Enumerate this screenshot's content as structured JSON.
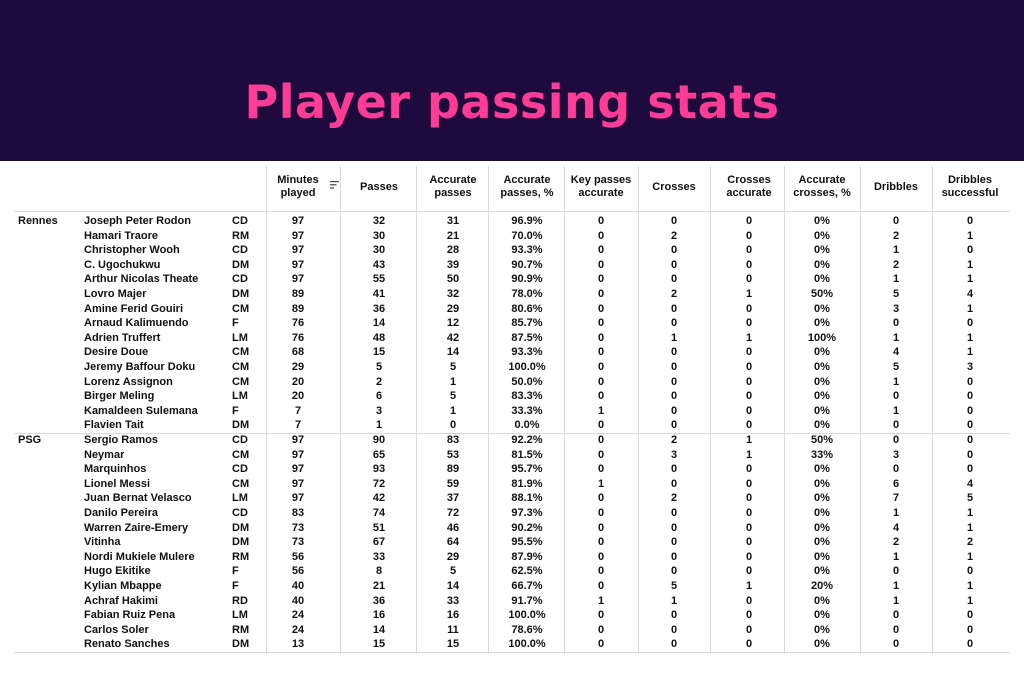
{
  "title": "Player passing stats",
  "colors": {
    "banner": "#1e0a3c",
    "title": "#ff3c96"
  },
  "header": {
    "minutes": [
      "Minutes",
      "played"
    ],
    "passes": [
      "Passes"
    ],
    "acc_passes": [
      "Accurate",
      "passes"
    ],
    "acc_pct": [
      "Accurate",
      "passes, %"
    ],
    "key": [
      "Key passes",
      "accurate"
    ],
    "crosses": [
      "Crosses"
    ],
    "cross_acc": [
      "Crosses",
      "accurate"
    ],
    "cross_pct": [
      "Accurate",
      "crosses, %"
    ],
    "dribbles": [
      "Dribbles"
    ],
    "drib_succ": [
      "Dribbles",
      "successful"
    ],
    "sort_icon": "sort-descending-icon"
  },
  "rows": [
    [
      "Rennes",
      "Joseph Peter Rodon",
      "CD",
      "97",
      "32",
      "31",
      "96.9%",
      "0",
      "0",
      "0",
      "0%",
      "0",
      "0"
    ],
    [
      "",
      "Hamari Traore",
      "RM",
      "97",
      "30",
      "21",
      "70.0%",
      "0",
      "2",
      "0",
      "0%",
      "2",
      "1"
    ],
    [
      "",
      "Christopher Wooh",
      "CD",
      "97",
      "30",
      "28",
      "93.3%",
      "0",
      "0",
      "0",
      "0%",
      "1",
      "0"
    ],
    [
      "",
      "C. Ugochukwu",
      "DM",
      "97",
      "43",
      "39",
      "90.7%",
      "0",
      "0",
      "0",
      "0%",
      "2",
      "1"
    ],
    [
      "",
      "Arthur Nicolas Theate",
      "CD",
      "97",
      "55",
      "50",
      "90.9%",
      "0",
      "0",
      "0",
      "0%",
      "1",
      "1"
    ],
    [
      "",
      "Lovro Majer",
      "DM",
      "89",
      "41",
      "32",
      "78.0%",
      "0",
      "2",
      "1",
      "50%",
      "5",
      "4"
    ],
    [
      "",
      "Amine Ferid Gouiri",
      "CM",
      "89",
      "36",
      "29",
      "80.6%",
      "0",
      "0",
      "0",
      "0%",
      "3",
      "1"
    ],
    [
      "",
      "Arnaud Kalimuendo",
      "F",
      "76",
      "14",
      "12",
      "85.7%",
      "0",
      "0",
      "0",
      "0%",
      "0",
      "0"
    ],
    [
      "",
      "Adrien Truffert",
      "LM",
      "76",
      "48",
      "42",
      "87.5%",
      "0",
      "1",
      "1",
      "100%",
      "1",
      "1"
    ],
    [
      "",
      "Desire Doue",
      "CM",
      "68",
      "15",
      "14",
      "93.3%",
      "0",
      "0",
      "0",
      "0%",
      "4",
      "1"
    ],
    [
      "",
      "Jeremy Baffour Doku",
      "CM",
      "29",
      "5",
      "5",
      "100.0%",
      "0",
      "0",
      "0",
      "0%",
      "5",
      "3"
    ],
    [
      "",
      "Lorenz Assignon",
      "CM",
      "20",
      "2",
      "1",
      "50.0%",
      "0",
      "0",
      "0",
      "0%",
      "1",
      "0"
    ],
    [
      "",
      "Birger Meling",
      "LM",
      "20",
      "6",
      "5",
      "83.3%",
      "0",
      "0",
      "0",
      "0%",
      "0",
      "0"
    ],
    [
      "",
      "Kamaldeen Sulemana",
      "F",
      "7",
      "3",
      "1",
      "33.3%",
      "1",
      "0",
      "0",
      "0%",
      "1",
      "0"
    ],
    [
      "",
      "Flavien Tait",
      "DM",
      "7",
      "1",
      "0",
      "0.0%",
      "0",
      "0",
      "0",
      "0%",
      "0",
      "0"
    ],
    [
      "PSG",
      "Sergio Ramos",
      "CD",
      "97",
      "90",
      "83",
      "92.2%",
      "0",
      "2",
      "1",
      "50%",
      "0",
      "0"
    ],
    [
      "",
      "Neymar",
      "CM",
      "97",
      "65",
      "53",
      "81.5%",
      "0",
      "3",
      "1",
      "33%",
      "3",
      "0"
    ],
    [
      "",
      "Marquinhos",
      "CD",
      "97",
      "93",
      "89",
      "95.7%",
      "0",
      "0",
      "0",
      "0%",
      "0",
      "0"
    ],
    [
      "",
      "Lionel Messi",
      "CM",
      "97",
      "72",
      "59",
      "81.9%",
      "1",
      "0",
      "0",
      "0%",
      "6",
      "4"
    ],
    [
      "",
      "Juan Bernat Velasco",
      "LM",
      "97",
      "42",
      "37",
      "88.1%",
      "0",
      "2",
      "0",
      "0%",
      "7",
      "5"
    ],
    [
      "",
      "Danilo Pereira",
      "CD",
      "83",
      "74",
      "72",
      "97.3%",
      "0",
      "0",
      "0",
      "0%",
      "1",
      "1"
    ],
    [
      "",
      "Warren Zaire-Emery",
      "DM",
      "73",
      "51",
      "46",
      "90.2%",
      "0",
      "0",
      "0",
      "0%",
      "4",
      "1"
    ],
    [
      "",
      "Vitinha",
      "DM",
      "73",
      "67",
      "64",
      "95.5%",
      "0",
      "0",
      "0",
      "0%",
      "2",
      "2"
    ],
    [
      "",
      "Nordi Mukiele Mulere",
      "RM",
      "56",
      "33",
      "29",
      "87.9%",
      "0",
      "0",
      "0",
      "0%",
      "1",
      "1"
    ],
    [
      "",
      "Hugo Ekitike",
      "F",
      "56",
      "8",
      "5",
      "62.5%",
      "0",
      "0",
      "0",
      "0%",
      "0",
      "0"
    ],
    [
      "",
      "Kylian Mbappe",
      "F",
      "40",
      "21",
      "14",
      "66.7%",
      "0",
      "5",
      "1",
      "20%",
      "1",
      "1"
    ],
    [
      "",
      "Achraf Hakimi",
      "RD",
      "40",
      "36",
      "33",
      "91.7%",
      "1",
      "1",
      "0",
      "0%",
      "1",
      "1"
    ],
    [
      "",
      "Fabian Ruiz Pena",
      "LM",
      "24",
      "16",
      "16",
      "100.0%",
      "0",
      "0",
      "0",
      "0%",
      "0",
      "0"
    ],
    [
      "",
      "Carlos Soler",
      "RM",
      "24",
      "14",
      "11",
      "78.6%",
      "0",
      "0",
      "0",
      "0%",
      "0",
      "0"
    ],
    [
      "",
      "Renato Sanches",
      "DM",
      "13",
      "15",
      "15",
      "100.0%",
      "0",
      "0",
      "0",
      "0%",
      "0",
      "0"
    ]
  ]
}
